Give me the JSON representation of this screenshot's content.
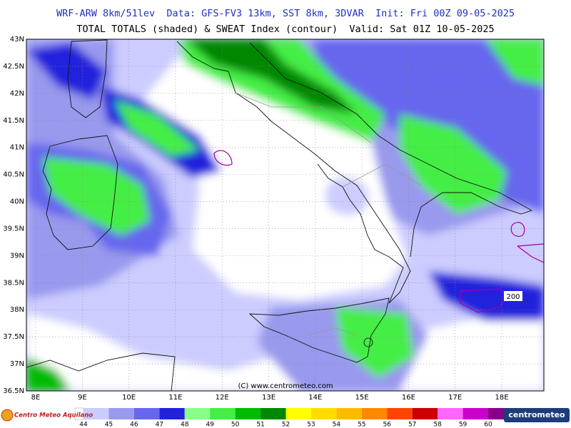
{
  "header": {
    "line1": "WRF-ARW 8km/51lev  Data: GFS-FV3 13km, SST 8km, 3DVAR  Init: Fri 00Z 09-05-2025",
    "line2": "TOTAL TOTALS (shaded) & SWEAT Index (contour)  Valid: Sat 01Z 10-05-2025"
  },
  "map": {
    "lat_labels": [
      "43N",
      "42.5N",
      "42N",
      "41.5N",
      "41N",
      "40.5N",
      "40N",
      "39.5N",
      "39N",
      "38.5N",
      "38N",
      "37.5N",
      "37N",
      "36.5N"
    ],
    "lon_labels": [
      "8E",
      "9E",
      "10E",
      "11E",
      "12E",
      "13E",
      "14E",
      "15E",
      "16E",
      "17E",
      "18E"
    ],
    "contour_label": "200",
    "copyright": "(C) www.centrometeo.com"
  },
  "legend": {
    "labels": [
      44,
      45,
      46,
      47,
      48,
      49,
      50,
      51,
      52,
      53,
      54,
      55,
      56,
      57,
      58,
      59,
      60
    ],
    "colors": [
      "#ccccff",
      "#9999ee",
      "#6666ee",
      "#2222dd",
      "#88ff88",
      "#44ee44",
      "#00bb00",
      "#008800",
      "#ffff00",
      "#ffdd00",
      "#ffbb00",
      "#ff8800",
      "#ff4400",
      "#cc0000",
      "#ff66ff",
      "#cc00cc",
      "#880088"
    ]
  },
  "footer": {
    "left_logo": "Centro Meteo Aquilano",
    "right_logo": "centrometeo"
  }
}
